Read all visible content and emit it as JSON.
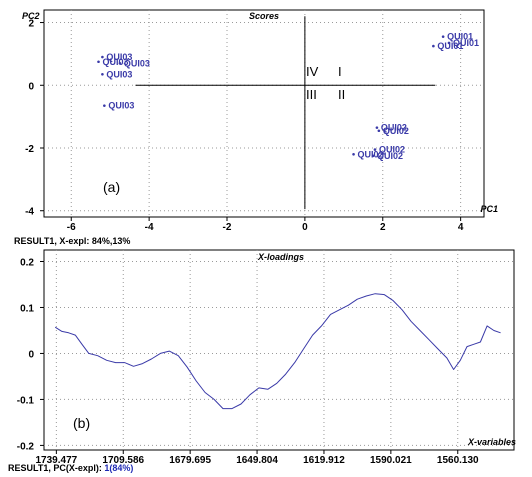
{
  "chart_data": [
    {
      "type": "scatter",
      "panel_label": "(a)",
      "title": "Scores",
      "xlabel": "PC1",
      "ylabel": "PC2",
      "xlim": [
        -6.7,
        4.6
      ],
      "ylim": [
        -4.2,
        2.4
      ],
      "xticks": [
        -6,
        -4,
        -2,
        0,
        2,
        4
      ],
      "yticks": [
        2,
        0,
        -2,
        -4
      ],
      "grid": "dotted",
      "crosshair": {
        "x": 0,
        "y": 0
      },
      "quadrant_labels": [
        "IV",
        "I",
        "III",
        "II"
      ],
      "points": [
        {
          "x": 3.55,
          "y": 1.55,
          "label": "QUI01"
        },
        {
          "x": 3.3,
          "y": 1.25,
          "label": "QUI01"
        },
        {
          "x": 3.7,
          "y": 1.35,
          "label": "QUI01"
        },
        {
          "x": -5.2,
          "y": 0.9,
          "label": "QUI03"
        },
        {
          "x": -5.3,
          "y": 0.75,
          "label": "QUI03"
        },
        {
          "x": -4.75,
          "y": 0.7,
          "label": "QUI03"
        },
        {
          "x": -5.2,
          "y": 0.35,
          "label": "QUI03"
        },
        {
          "x": -5.15,
          "y": -0.65,
          "label": "QUI03"
        },
        {
          "x": 1.85,
          "y": -1.35,
          "label": "QUI02"
        },
        {
          "x": 1.9,
          "y": -1.45,
          "label": "QUI02"
        },
        {
          "x": 1.8,
          "y": -2.05,
          "label": "QUI02"
        },
        {
          "x": 1.25,
          "y": -2.2,
          "label": "QUI02"
        },
        {
          "x": 1.75,
          "y": -2.25,
          "label": "QUI02"
        }
      ],
      "footer": {
        "prefix": "RESULT1, X-expl: ",
        "value": "84%,13%"
      }
    },
    {
      "type": "line",
      "panel_label": "(b)",
      "title": "X-loadings",
      "xlabel": "X-variables",
      "xlim": [
        1745,
        1535
      ],
      "ylim": [
        -0.21,
        0.225
      ],
      "xticks": [
        1739.477,
        1709.586,
        1679.695,
        1649.804,
        1619.912,
        1590.021,
        1560.13
      ],
      "xtick_labels": [
        "1739.477",
        "1709.586",
        "1679.695",
        "1649.804",
        "1619.912",
        "1590.021",
        "1560.130"
      ],
      "yticks": [
        0.2,
        0.1,
        0,
        -0.1,
        -0.2
      ],
      "ytick_labels": [
        "0.2",
        "0.1",
        "0",
        "-0.1",
        "-0.2"
      ],
      "grid": "dotted",
      "series": [
        {
          "color": "#3a3aa8",
          "x": [
            1740,
            1737,
            1734,
            1731,
            1728,
            1725,
            1721,
            1717,
            1713,
            1709,
            1705,
            1701,
            1697,
            1693,
            1689,
            1685,
            1681,
            1677,
            1673,
            1669,
            1665,
            1661,
            1657,
            1653,
            1649,
            1645,
            1641,
            1637,
            1633,
            1629,
            1625,
            1621,
            1617,
            1613,
            1609,
            1605,
            1601,
            1597,
            1593,
            1589,
            1585,
            1581,
            1577,
            1573,
            1569,
            1565,
            1562,
            1559,
            1556,
            1553,
            1550,
            1547,
            1544,
            1541
          ],
          "y": [
            0.057,
            0.048,
            0.045,
            0.04,
            0.02,
            0.0,
            -0.005,
            -0.015,
            -0.02,
            -0.02,
            -0.028,
            -0.022,
            -0.012,
            0.0,
            0.005,
            -0.005,
            -0.03,
            -0.06,
            -0.085,
            -0.1,
            -0.12,
            -0.12,
            -0.11,
            -0.09,
            -0.075,
            -0.078,
            -0.065,
            -0.045,
            -0.02,
            0.01,
            0.04,
            0.06,
            0.085,
            0.095,
            0.105,
            0.118,
            0.125,
            0.13,
            0.128,
            0.115,
            0.095,
            0.07,
            0.05,
            0.03,
            0.01,
            -0.01,
            -0.035,
            -0.015,
            0.015,
            0.02,
            0.025,
            0.06,
            0.05,
            0.045
          ]
        }
      ],
      "footer": {
        "prefix": "RESULT1, PC(X-expl): ",
        "value": "1(84%)"
      }
    }
  ]
}
